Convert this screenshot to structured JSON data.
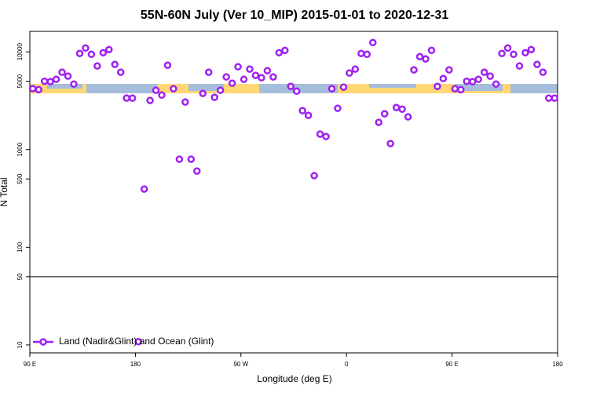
{
  "chart_data": {
    "type": "scatter",
    "title": "55N-60N July (Ver 10_MIP)   2015-01-01 to 2020-12-31",
    "x_label": "Longitude (deg E)",
    "y_label": "N Total",
    "log_y": true,
    "legend": "bottom-left",
    "hline": 50,
    "xlim": [
      90,
      540
    ],
    "xticks": [
      {
        "value": 90,
        "label": "90 E"
      },
      180,
      {
        "value": 270,
        "label": "90 W"
      },
      {
        "value": 360,
        "label": "0"
      },
      {
        "value": 450,
        "label": "90 E"
      },
      {
        "value": 540,
        "label": "180"
      }
    ],
    "ylim": [
      8.3,
      16200
    ],
    "yticks": [
      10,
      50,
      100,
      500,
      1000,
      5000,
      10000
    ],
    "series": [
      {
        "name": "Land (Nadir&Glint) and Ocean (Glint)",
        "color": "#a020f0",
        "x": [
          92.5,
          97.5,
          102.5,
          107.5,
          112.5,
          117.5,
          122.5,
          127.5,
          132.5,
          137.5,
          142.5,
          147.5,
          152.5,
          157.5,
          162.5,
          167.5,
          172.5,
          177.5,
          182.5,
          187.5,
          192.5,
          197.5,
          202.5,
          207.5,
          212.5,
          217.5,
          222.5,
          227.5,
          232.5,
          237.5,
          242.5,
          247.5,
          252.5,
          257.5,
          262.5,
          267.5,
          272.5,
          277.5,
          282.5,
          287.5,
          292.5,
          297.5,
          302.5,
          307.5,
          312.5,
          317.5,
          322.5,
          327.5,
          332.5,
          337.5,
          342.5,
          347.5,
          352.5,
          357.5,
          362.5,
          367.5,
          372.5,
          377.5,
          382.5,
          387.5,
          392.5,
          397.5,
          402.5,
          407.5,
          412.5,
          417.5,
          422.5,
          427.5,
          432.5,
          437.5,
          442.5,
          447.5,
          452.5,
          457.5,
          462.5,
          467.5,
          472.5,
          477.5,
          482.5,
          487.5,
          492.5,
          497.5,
          502.5,
          507.5,
          512.5,
          517.5,
          522.5,
          527.5,
          532.5,
          537.5
        ],
        "values": [
          4200,
          4100,
          5000,
          4950,
          5230,
          6180,
          5640,
          4680,
          9620,
          10940,
          9440,
          7160,
          9800,
          10550,
          7430,
          6180,
          3360,
          3360,
          10.8,
          394,
          3180,
          4040,
          3610,
          7290,
          4190,
          796,
          3060,
          796,
          603,
          3750,
          6180,
          3420,
          4040,
          5530,
          4770,
          7030,
          5230,
          6650,
          5740,
          5430,
          6410,
          5530,
          9800,
          10350,
          4430,
          3960,
          2500,
          2240,
          540,
          1440,
          1360,
          4190,
          2640,
          4350,
          6070,
          6650,
          9620,
          9440,
          12450,
          1900,
          2320,
          1150,
          2690,
          2590,
          2160,
          6530,
          8930,
          8460,
          10350,
          4430,
          5330,
          6530,
          4190,
          4100,
          5000,
          4950,
          5230,
          6180,
          5640,
          4680,
          9620,
          10940,
          9440,
          7160,
          9800,
          10550,
          7430,
          6180,
          3360,
          3360
        ]
      }
    ]
  }
}
